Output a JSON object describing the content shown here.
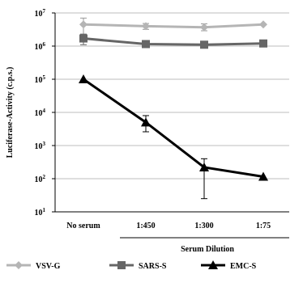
{
  "chart_data": {
    "type": "line",
    "categories": [
      "No serum",
      "1:450",
      "1:300",
      "1:75"
    ],
    "ylabel": "Luciferase-Activity (c.p.s.)",
    "xlabel": "Serum Dilution",
    "y_scale": "log",
    "ylim": [
      10,
      10000000
    ],
    "y_ticks": [
      {
        "value": 10,
        "base": "10",
        "exp": "1"
      },
      {
        "value": 100,
        "base": "10",
        "exp": "2"
      },
      {
        "value": 1000,
        "base": "10",
        "exp": "3"
      },
      {
        "value": 10000,
        "base": "10",
        "exp": "4"
      },
      {
        "value": 100000,
        "base": "10",
        "exp": "5"
      },
      {
        "value": 1000000,
        "base": "10",
        "exp": "6"
      },
      {
        "value": 10000000,
        "base": "10",
        "exp": "7"
      }
    ],
    "grid": true,
    "legend_position": "bottom",
    "series": [
      {
        "name": "VSV-G",
        "color": "#b5b5b5",
        "marker": "diamond",
        "values": [
          4500000,
          4000000,
          3700000,
          4500000
        ],
        "err_low": [
          2000000,
          3200000,
          2900000,
          4500000
        ],
        "err_high": [
          7000000,
          4800000,
          4700000,
          4500000
        ]
      },
      {
        "name": "SARS-S",
        "color": "#666666",
        "marker": "square",
        "values": [
          1700000,
          1150000,
          1100000,
          1200000
        ],
        "err_low": [
          1100000,
          1000000,
          1000000,
          1000000
        ],
        "err_high": [
          2300000,
          1300000,
          1200000,
          1400000
        ]
      },
      {
        "name": "EMC-S",
        "color": "#000000",
        "marker": "triangle",
        "values": [
          100000,
          5000,
          220,
          115
        ],
        "err_low": [
          100000,
          2600,
          25,
          115
        ],
        "err_high": [
          100000,
          8000,
          400,
          115
        ]
      }
    ]
  }
}
